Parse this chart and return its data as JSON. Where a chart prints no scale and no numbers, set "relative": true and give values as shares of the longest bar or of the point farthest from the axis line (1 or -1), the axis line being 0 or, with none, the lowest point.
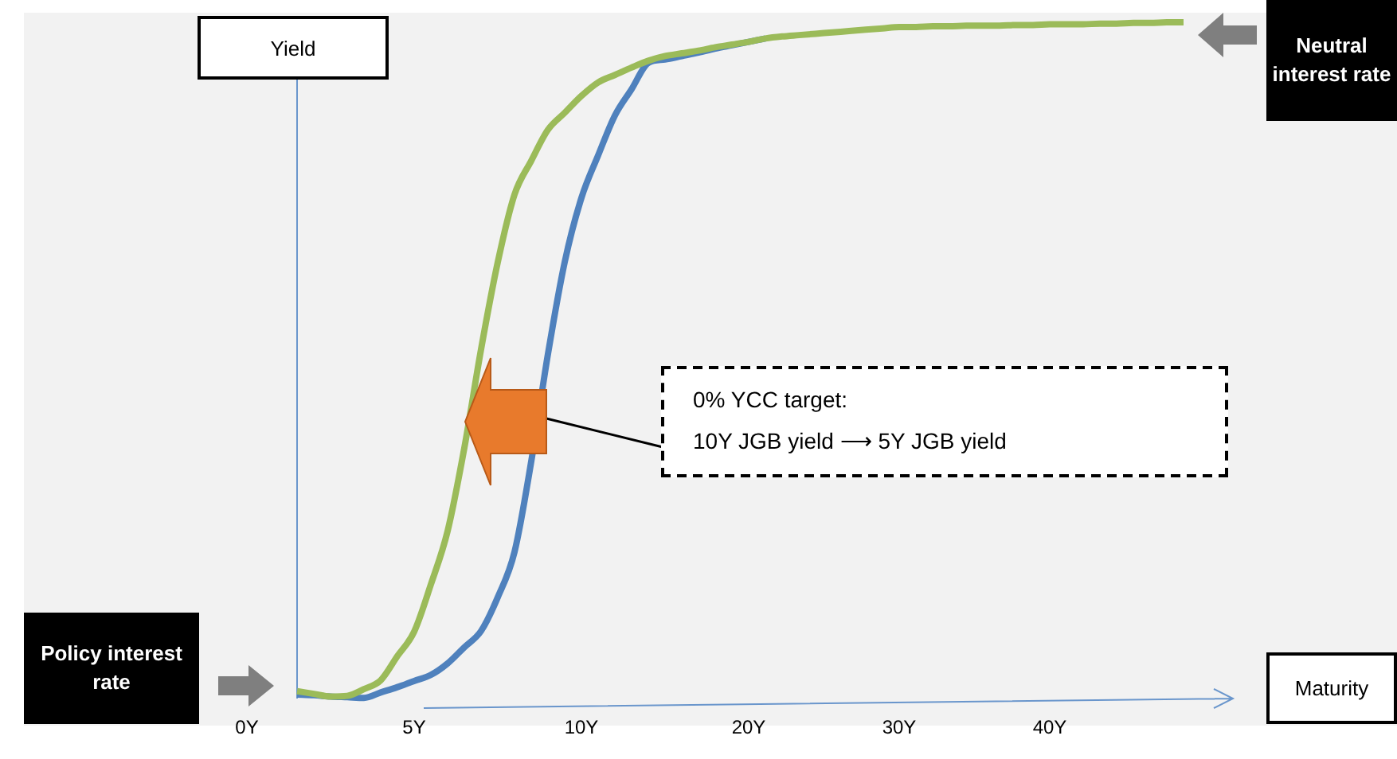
{
  "chart_data": {
    "type": "line",
    "relative": true,
    "legend": false,
    "grid": false,
    "marker": "none",
    "line_style": "solid",
    "categories": [
      "0Y",
      null,
      null,
      null,
      null,
      null,
      null,
      null,
      null,
      null,
      "5Y",
      null,
      null,
      null,
      null,
      null,
      null,
      null,
      null,
      null,
      "10Y",
      null,
      null,
      null,
      null,
      null,
      null,
      null,
      null,
      null,
      "20Y",
      null,
      null,
      null,
      null,
      null,
      null,
      null,
      null,
      "30Y",
      null,
      null,
      null,
      null,
      null,
      null,
      null,
      null,
      "40Y",
      null,
      null,
      null,
      null,
      null,
      null,
      null,
      null
    ],
    "series": [
      {
        "color": "#9bbb59",
        "values": [
          null,
          null,
          null,
          0.01,
          0.006,
          0.002,
          0.003,
          0.013,
          0.026,
          0.062,
          0.098,
          0.168,
          0.247,
          0.37,
          0.516,
          0.645,
          0.745,
          0.795,
          0.841,
          0.866,
          0.891,
          0.911,
          0.922,
          0.933,
          0.943,
          0.95,
          0.954,
          0.958,
          0.963,
          0.967,
          0.971,
          0.976,
          0.979,
          0.981,
          0.983,
          0.985,
          0.987,
          0.989,
          0.991,
          0.993,
          0.993,
          0.994,
          0.994,
          0.995,
          0.995,
          0.995,
          0.996,
          0.996,
          0.997,
          0.997,
          0.997,
          0.998,
          0.998,
          0.999,
          0.999,
          1,
          1
        ]
      },
      {
        "color": "#4f81bd",
        "values": [
          null,
          null,
          null,
          0.005,
          0.004,
          0.002,
          0.001,
          0,
          0.008,
          0.016,
          0.025,
          0.034,
          0.051,
          0.075,
          0.099,
          0.149,
          0.216,
          0.35,
          0.509,
          0.645,
          0.74,
          0.803,
          0.862,
          0.901,
          0.94,
          0.945,
          0.95,
          0.955,
          0.961,
          0.966,
          0.971,
          0.976,
          null,
          null,
          null,
          null,
          null,
          null,
          null,
          null,
          null,
          null,
          null,
          null,
          null,
          null,
          null,
          null,
          null,
          null,
          null,
          null,
          null,
          null,
          null,
          null,
          null
        ]
      }
    ],
    "annotations": [
      "Yield",
      "Maturity",
      "Policy interest rate",
      "Neutral interest rate",
      "0% YCC target:",
      "10Y JGB yield ⟶ 5Y JGB yield"
    ]
  }
}
